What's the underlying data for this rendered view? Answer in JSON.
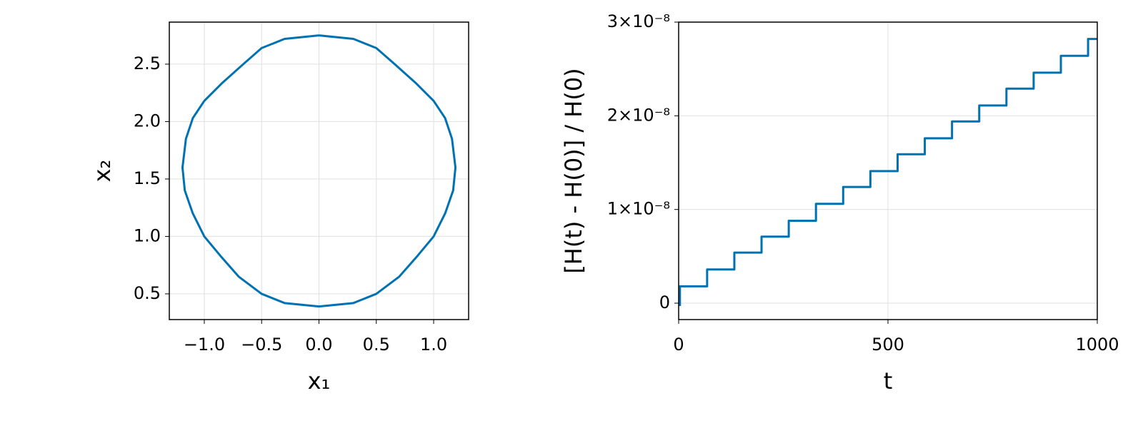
{
  "chart_data": [
    {
      "type": "line",
      "xlabel": "x₁",
      "ylabel": "x₂",
      "color": "#0072b2",
      "grid": true,
      "xlim": [
        -1.305,
        1.305
      ],
      "ylim": [
        0.276,
        2.866
      ],
      "xticks": [
        {
          "value": -1,
          "label": "−1.0"
        },
        {
          "value": -0.5,
          "label": "−0.5"
        },
        {
          "value": 0,
          "label": "0.0"
        },
        0.5,
        {
          "value": 1,
          "label": "1.0"
        }
      ],
      "yticks": [
        0.5,
        {
          "value": 1,
          "label": "1.0"
        },
        1.5,
        {
          "value": 2,
          "label": "2.0"
        },
        2.5
      ],
      "x": [
        0,
        0.3,
        0.5,
        0.66,
        0.85,
        1.0,
        1.1,
        1.16,
        1.19,
        1.17,
        1.1,
        1.0,
        0.85,
        0.7,
        0.5,
        0.3,
        0,
        -0.3,
        -0.5,
        -0.7,
        -0.85,
        -1.0,
        -1.1,
        -1.17,
        -1.19,
        -1.16,
        -1.1,
        -1.0,
        -0.85,
        -0.66,
        -0.5,
        -0.3,
        0
      ],
      "values": [
        2.75,
        2.72,
        2.64,
        2.5,
        2.33,
        2.18,
        2.03,
        1.85,
        1.6,
        1.4,
        1.2,
        1.0,
        0.82,
        0.65,
        0.5,
        0.42,
        0.39,
        0.42,
        0.5,
        0.65,
        0.82,
        1.0,
        1.2,
        1.4,
        1.6,
        1.85,
        2.03,
        2.18,
        2.33,
        2.5,
        2.64,
        2.72,
        2.75
      ]
    },
    {
      "type": "line",
      "xlabel": "t",
      "ylabel": "[H(t) - H(0)] / H(0)",
      "color": "#0072b2",
      "grid": true,
      "xlim": [
        0,
        1000
      ],
      "ylim": [
        -1.75e-09,
        3e-08
      ],
      "xticks": [
        0,
        500,
        1000
      ],
      "yticks": [
        0,
        {
          "value": 1e-08,
          "label": "1×10⁻⁸"
        },
        {
          "value": 2e-08,
          "label": "2×10⁻⁸"
        },
        {
          "value": 3e-08,
          "label": "3×10⁻⁸"
        }
      ],
      "x": [
        3,
        3,
        68,
        68,
        133,
        133,
        198,
        198,
        263,
        263,
        328,
        328,
        393,
        393,
        458,
        458,
        523,
        523,
        588,
        588,
        653,
        653,
        718,
        718,
        783,
        783,
        848,
        848,
        913,
        913,
        978,
        978,
        1000
      ],
      "values": [
        -3e-10,
        1.8e-09,
        1.8e-09,
        3.6e-09,
        3.6e-09,
        5.4e-09,
        5.4e-09,
        7.1e-09,
        7.1e-09,
        8.8e-09,
        8.8e-09,
        1.06e-08,
        1.06e-08,
        1.24e-08,
        1.24e-08,
        1.41e-08,
        1.41e-08,
        1.59e-08,
        1.59e-08,
        1.76e-08,
        1.76e-08,
        1.94e-08,
        1.94e-08,
        2.11e-08,
        2.11e-08,
        2.29e-08,
        2.29e-08,
        2.46e-08,
        2.46e-08,
        2.64e-08,
        2.64e-08,
        2.82e-08,
        2.82e-08
      ]
    }
  ]
}
